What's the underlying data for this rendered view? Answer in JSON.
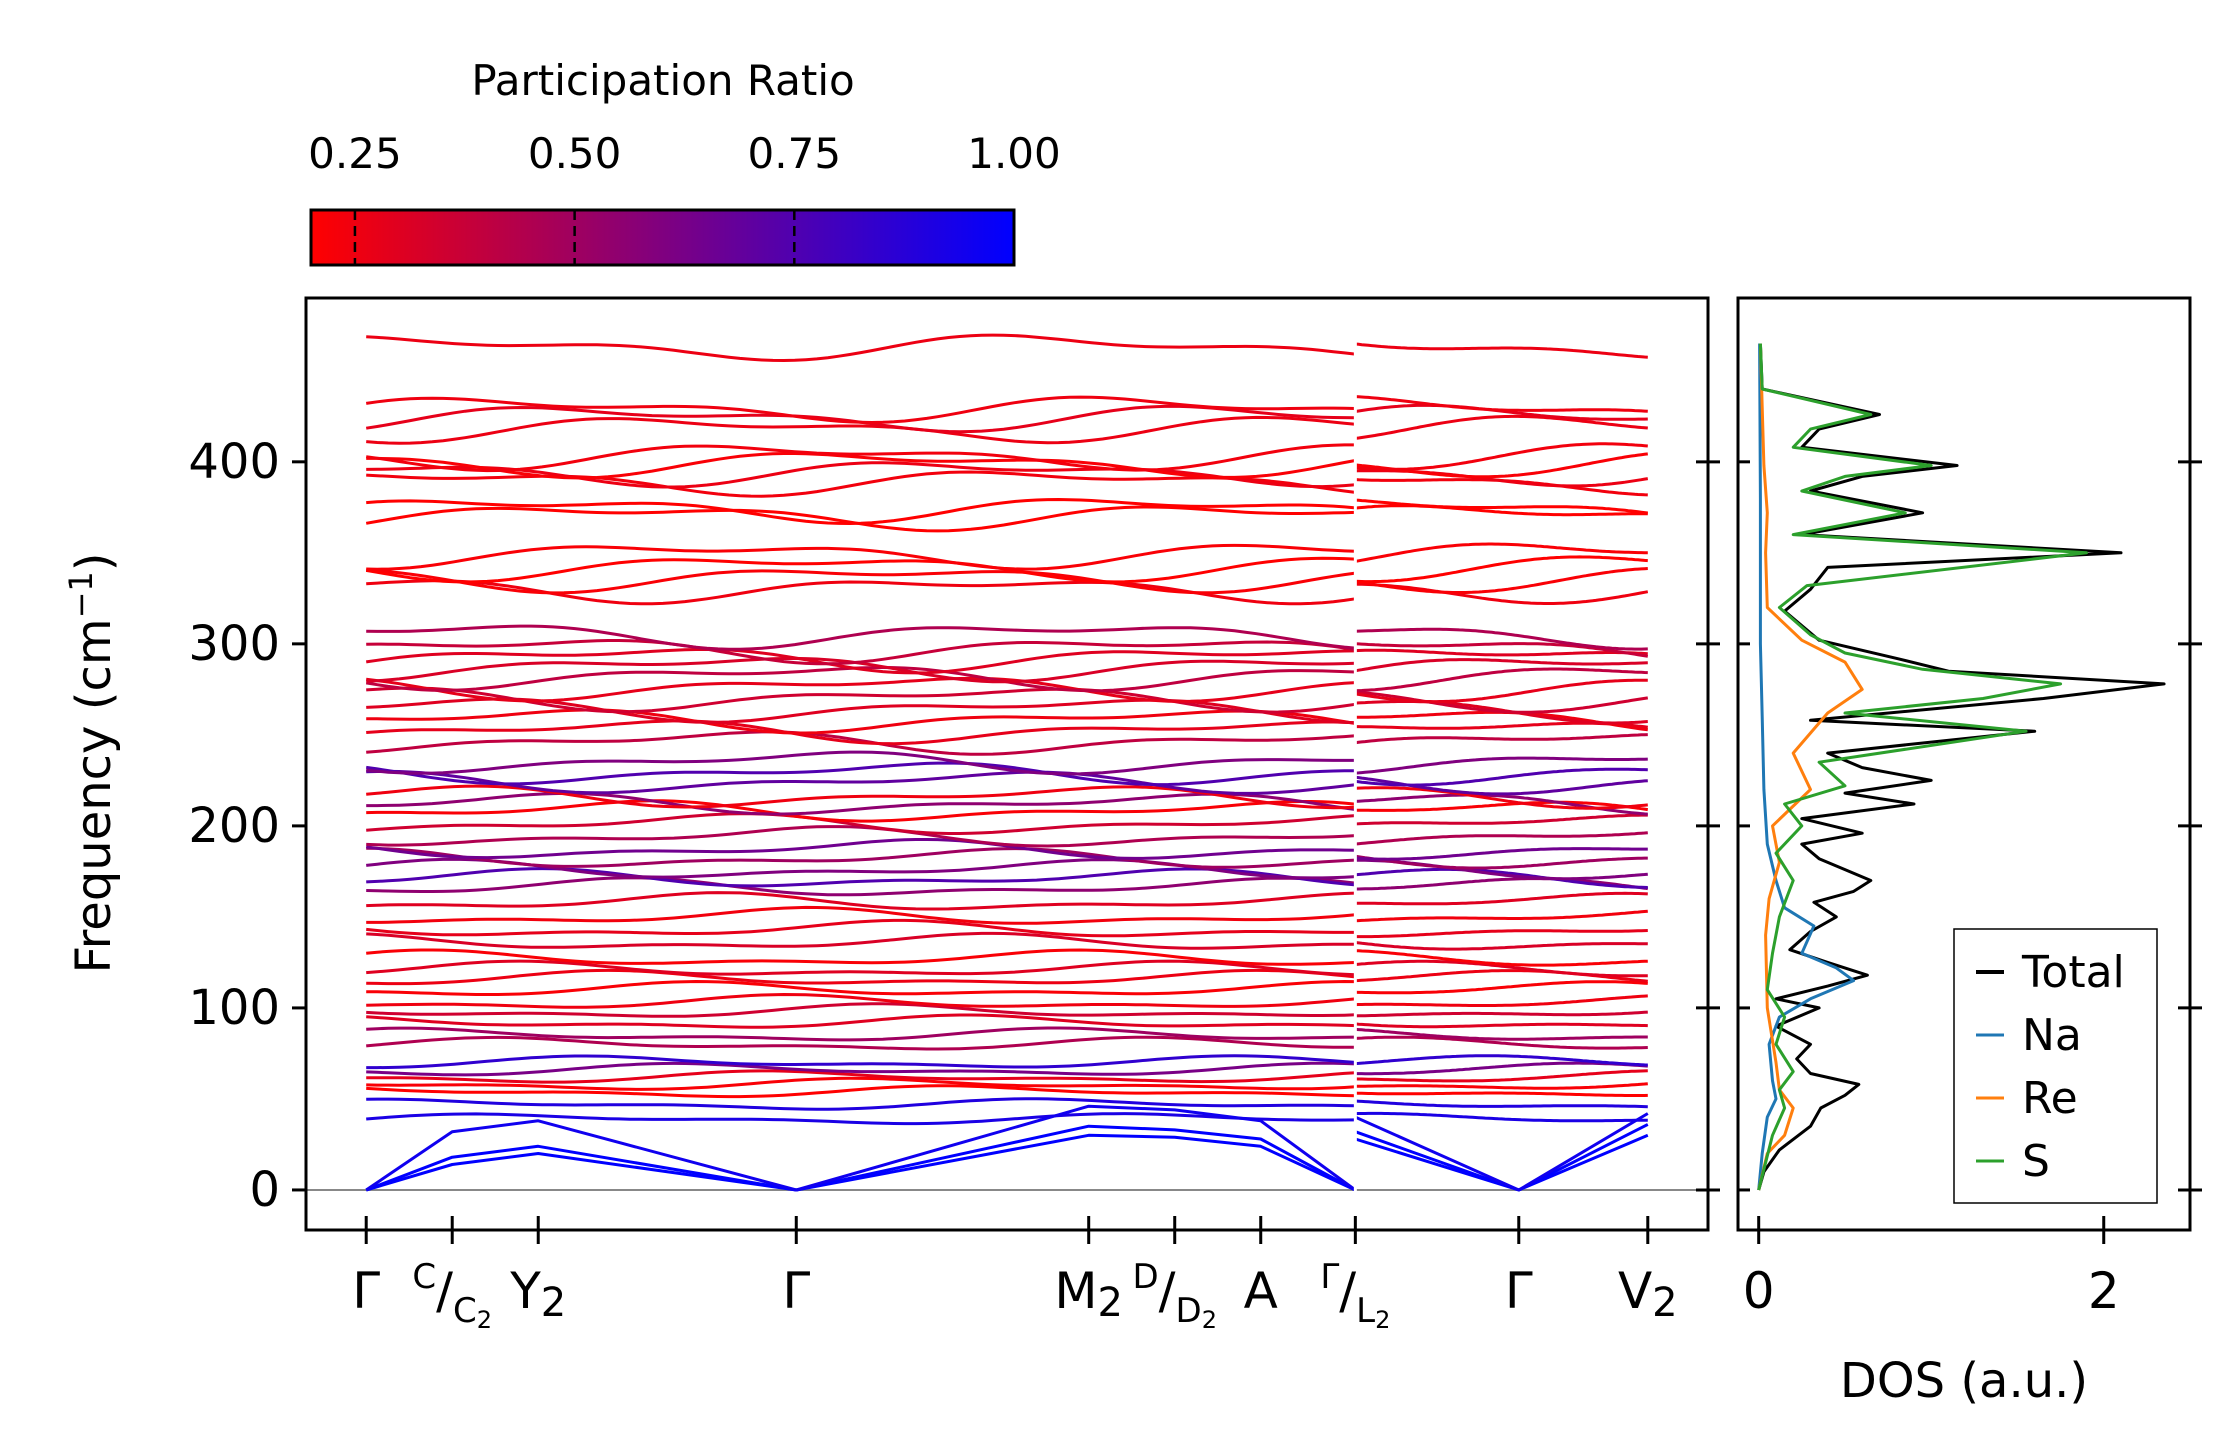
{
  "chart_data": [
    {
      "type": "line",
      "subtype": "phonon-band-structure",
      "ylabel_main": "Frequency (cm",
      "ylabel_sup": "−1",
      "ylabel_close": ")",
      "ylim": [
        -22,
        490
      ],
      "yticks": [
        "0",
        "100",
        "200",
        "300",
        "400"
      ],
      "ytick_values": [
        0,
        100,
        200,
        300,
        400
      ],
      "colorbar": {
        "title": "Participation Ratio",
        "range": [
          0.2,
          1.0
        ],
        "ticks": [
          "0.25",
          "0.50",
          "0.75",
          "1.00"
        ],
        "tick_values": [
          0.25,
          0.5,
          0.75,
          1.0
        ],
        "colors": {
          "low": "#ff0000",
          "high": "#0000ff"
        }
      },
      "kpath": {
        "segment1_x": [
          0,
          0.5,
          1,
          2.5,
          4.2,
          4.7,
          5.2,
          5.75
        ],
        "segment2_x": [
          5.75,
          6.7,
          7.45
        ],
        "xlim": [
          -0.35,
          7.8
        ],
        "major_labels": [
          {
            "x": 0,
            "base": "Γ",
            "sub": "",
            "sup": ""
          },
          {
            "x": 1,
            "base": "Y",
            "sub": "2",
            "sup": ""
          },
          {
            "x": 2.5,
            "base": "Γ",
            "sub": "",
            "sup": ""
          },
          {
            "x": 4.2,
            "base": "M",
            "sub": "2",
            "sup": ""
          },
          {
            "x": 5.2,
            "base": "A",
            "sub": "",
            "sup": ""
          },
          {
            "x": 6.7,
            "base": "Γ",
            "sub": "",
            "sup": ""
          },
          {
            "x": 7.45,
            "base": "V",
            "sub": "2",
            "sup": ""
          }
        ],
        "fraction_labels": [
          {
            "x": 0.5,
            "num": "C",
            "den": "C",
            "den_sub": "2"
          },
          {
            "x": 4.7,
            "num": "D",
            "den": "D",
            "den_sub": "2"
          },
          {
            "x": 5.75,
            "num": "Γ",
            "den": "L",
            "den_sub": "2"
          }
        ],
        "tick_x": [
          0,
          0.5,
          1,
          2.5,
          4.2,
          4.7,
          5.2,
          5.75,
          6.7,
          7.45
        ]
      },
      "acoustic_branches": [
        {
          "path": [
            [
              0,
              0
            ],
            [
              0.5,
              14
            ],
            [
              1,
              20
            ],
            [
              2.5,
              0
            ],
            [
              4.2,
              30
            ],
            [
              4.7,
              29
            ],
            [
              5.2,
              24
            ],
            [
              5.75,
              0
            ]
          ],
          "path2": [
            [
              5.75,
              28
            ],
            [
              6.7,
              0
            ],
            [
              7.45,
              30
            ]
          ],
          "pr": 1.0
        },
        {
          "path": [
            [
              0,
              0
            ],
            [
              0.5,
              18
            ],
            [
              1,
              24
            ],
            [
              2.5,
              0
            ],
            [
              4.2,
              35
            ],
            [
              4.7,
              33
            ],
            [
              5.2,
              28
            ],
            [
              5.75,
              0
            ]
          ],
          "path2": [
            [
              5.75,
              32
            ],
            [
              6.7,
              0
            ],
            [
              7.45,
              36
            ]
          ],
          "pr": 1.0
        },
        {
          "path": [
            [
              0,
              0
            ],
            [
              0.5,
              32
            ],
            [
              1,
              38
            ],
            [
              2.5,
              0
            ],
            [
              4.2,
              46
            ],
            [
              4.7,
              44
            ],
            [
              5.2,
              38
            ],
            [
              5.75,
              0
            ]
          ],
          "path2": [
            [
              5.75,
              40
            ],
            [
              6.7,
              0
            ],
            [
              7.45,
              42
            ]
          ],
          "pr": 0.95
        }
      ],
      "optical_branches": [
        {
          "f": 39,
          "pr": 0.92
        },
        {
          "f": 47,
          "pr": 0.9
        },
        {
          "f": 54,
          "pr": 0.2
        },
        {
          "f": 58,
          "pr": 0.22
        },
        {
          "f": 62,
          "pr": 0.28
        },
        {
          "f": 66,
          "pr": 0.62
        },
        {
          "f": 70,
          "pr": 0.85
        },
        {
          "f": 80,
          "pr": 0.45
        },
        {
          "f": 85,
          "pr": 0.5
        },
        {
          "f": 92,
          "pr": 0.3
        },
        {
          "f": 98,
          "pr": 0.35
        },
        {
          "f": 103,
          "pr": 0.25
        },
        {
          "f": 110,
          "pr": 0.22
        },
        {
          "f": 116,
          "pr": 0.26
        },
        {
          "f": 121,
          "pr": 0.3
        },
        {
          "f": 127,
          "pr": 0.22
        },
        {
          "f": 136,
          "pr": 0.32
        },
        {
          "f": 143,
          "pr": 0.28
        },
        {
          "f": 150,
          "pr": 0.24
        },
        {
          "f": 158,
          "pr": 0.3
        },
        {
          "f": 166,
          "pr": 0.55
        },
        {
          "f": 171,
          "pr": 0.75
        },
        {
          "f": 176,
          "pr": 0.6
        },
        {
          "f": 182,
          "pr": 0.5
        },
        {
          "f": 187,
          "pr": 0.65
        },
        {
          "f": 194,
          "pr": 0.45
        },
        {
          "f": 201,
          "pr": 0.35
        },
        {
          "f": 208,
          "pr": 0.22
        },
        {
          "f": 212,
          "pr": 0.55
        },
        {
          "f": 216,
          "pr": 0.25
        },
        {
          "f": 224,
          "pr": 0.7
        },
        {
          "f": 229,
          "pr": 0.75
        },
        {
          "f": 235,
          "pr": 0.6
        },
        {
          "f": 246,
          "pr": 0.4
        },
        {
          "f": 252,
          "pr": 0.28
        },
        {
          "f": 258,
          "pr": 0.25
        },
        {
          "f": 264,
          "pr": 0.3
        },
        {
          "f": 270,
          "pr": 0.35
        },
        {
          "f": 276,
          "pr": 0.28
        },
        {
          "f": 282,
          "pr": 0.4
        },
        {
          "f": 287,
          "pr": 0.32
        },
        {
          "f": 292,
          "pr": 0.3
        },
        {
          "f": 297,
          "pr": 0.38
        },
        {
          "f": 305,
          "pr": 0.45
        },
        {
          "f": 330,
          "pr": 0.25
        },
        {
          "f": 336,
          "pr": 0.22
        },
        {
          "f": 342,
          "pr": 0.2
        },
        {
          "f": 349,
          "pr": 0.22
        },
        {
          "f": 370,
          "pr": 0.2
        },
        {
          "f": 374,
          "pr": 0.2
        },
        {
          "f": 389,
          "pr": 0.24
        },
        {
          "f": 394,
          "pr": 0.26
        },
        {
          "f": 399,
          "pr": 0.22
        },
        {
          "f": 403,
          "pr": 0.24
        },
        {
          "f": 418,
          "pr": 0.26
        },
        {
          "f": 424,
          "pr": 0.28
        },
        {
          "f": 429,
          "pr": 0.25
        },
        {
          "f": 463,
          "pr": 0.26
        }
      ]
    },
    {
      "type": "line",
      "subtype": "density-of-states",
      "xlabel": "DOS (a.u.)",
      "xlim": [
        -0.12,
        2.5
      ],
      "xticks": [
        "0",
        "2"
      ],
      "xtick_values": [
        0,
        2
      ],
      "legend_position": "bottom-right",
      "series": [
        {
          "name": "Total",
          "color": "#000000",
          "points": [
            [
              0,
              0
            ],
            [
              0.03,
              10
            ],
            [
              0.12,
              22
            ],
            [
              0.3,
              35
            ],
            [
              0.36,
              45
            ],
            [
              0.5,
              52
            ],
            [
              0.58,
              58
            ],
            [
              0.3,
              64
            ],
            [
              0.22,
              72
            ],
            [
              0.3,
              80
            ],
            [
              0.1,
              90
            ],
            [
              0.35,
              100
            ],
            [
              0.1,
              105
            ],
            [
              0.4,
              112
            ],
            [
              0.63,
              118
            ],
            [
              0.4,
              125
            ],
            [
              0.18,
              132
            ],
            [
              0.3,
              142
            ],
            [
              0.45,
              150
            ],
            [
              0.32,
              158
            ],
            [
              0.55,
              164
            ],
            [
              0.65,
              170
            ],
            [
              0.5,
              176
            ],
            [
              0.35,
              182
            ],
            [
              0.25,
              190
            ],
            [
              0.6,
              196
            ],
            [
              0.25,
              204
            ],
            [
              0.9,
              212
            ],
            [
              0.5,
              218
            ],
            [
              1.0,
              225
            ],
            [
              0.6,
              232
            ],
            [
              0.4,
              240
            ],
            [
              1.6,
              252
            ],
            [
              0.3,
              258
            ],
            [
              1.65,
              270
            ],
            [
              2.35,
              278
            ],
            [
              1.1,
              285
            ],
            [
              0.8,
              292
            ],
            [
              0.35,
              302
            ],
            [
              0.15,
              318
            ],
            [
              0.3,
              330
            ],
            [
              0.4,
              342
            ],
            [
              2.1,
              350
            ],
            [
              0.25,
              360
            ],
            [
              0.95,
              372
            ],
            [
              0.3,
              384
            ],
            [
              0.6,
              392
            ],
            [
              1.15,
              398
            ],
            [
              0.25,
              408
            ],
            [
              0.35,
              418
            ],
            [
              0.7,
              426
            ],
            [
              0.02,
              440
            ],
            [
              0.01,
              465
            ]
          ]
        },
        {
          "name": "Na",
          "color": "#1f77b4",
          "points": [
            [
              0,
              0
            ],
            [
              0.02,
              20
            ],
            [
              0.05,
              40
            ],
            [
              0.1,
              50
            ],
            [
              0.08,
              60
            ],
            [
              0.06,
              80
            ],
            [
              0.12,
              95
            ],
            [
              0.3,
              105
            ],
            [
              0.55,
              115
            ],
            [
              0.45,
              122
            ],
            [
              0.25,
              130
            ],
            [
              0.32,
              145
            ],
            [
              0.15,
              155
            ],
            [
              0.1,
              170
            ],
            [
              0.05,
              190
            ],
            [
              0.03,
              220
            ],
            [
              0.02,
              260
            ],
            [
              0.01,
              300
            ],
            [
              0.01,
              380
            ],
            [
              0.005,
              465
            ]
          ]
        },
        {
          "name": "Re",
          "color": "#ff7f0e",
          "points": [
            [
              0,
              0
            ],
            [
              0.05,
              20
            ],
            [
              0.15,
              30
            ],
            [
              0.2,
              45
            ],
            [
              0.12,
              55
            ],
            [
              0.1,
              70
            ],
            [
              0.05,
              100
            ],
            [
              0.04,
              140
            ],
            [
              0.06,
              160
            ],
            [
              0.12,
              180
            ],
            [
              0.08,
              200
            ],
            [
              0.3,
              220
            ],
            [
              0.2,
              240
            ],
            [
              0.4,
              262
            ],
            [
              0.6,
              275
            ],
            [
              0.5,
              290
            ],
            [
              0.25,
              302
            ],
            [
              0.05,
              320
            ],
            [
              0.04,
              350
            ],
            [
              0.05,
              372
            ],
            [
              0.03,
              398
            ],
            [
              0.02,
              430
            ],
            [
              0.01,
              465
            ]
          ]
        },
        {
          "name": "S",
          "color": "#2ca02c",
          "points": [
            [
              0,
              0
            ],
            [
              0.04,
              15
            ],
            [
              0.08,
              30
            ],
            [
              0.15,
              45
            ],
            [
              0.12,
              55
            ],
            [
              0.2,
              65
            ],
            [
              0.1,
              80
            ],
            [
              0.15,
              95
            ],
            [
              0.05,
              110
            ],
            [
              0.08,
              130
            ],
            [
              0.12,
              150
            ],
            [
              0.2,
              170
            ],
            [
              0.1,
              185
            ],
            [
              0.25,
              200
            ],
            [
              0.15,
              212
            ],
            [
              0.5,
              222
            ],
            [
              0.35,
              235
            ],
            [
              1.55,
              252
            ],
            [
              0.5,
              262
            ],
            [
              1.3,
              270
            ],
            [
              1.75,
              278
            ],
            [
              0.95,
              286
            ],
            [
              0.5,
              295
            ],
            [
              0.3,
              305
            ],
            [
              0.12,
              320
            ],
            [
              0.28,
              332
            ],
            [
              1.9,
              350
            ],
            [
              0.2,
              360
            ],
            [
              0.85,
              372
            ],
            [
              0.25,
              384
            ],
            [
              0.5,
              392
            ],
            [
              1.0,
              398
            ],
            [
              0.2,
              408
            ],
            [
              0.3,
              418
            ],
            [
              0.65,
              426
            ],
            [
              0.02,
              440
            ],
            [
              0.01,
              465
            ]
          ]
        }
      ]
    }
  ]
}
